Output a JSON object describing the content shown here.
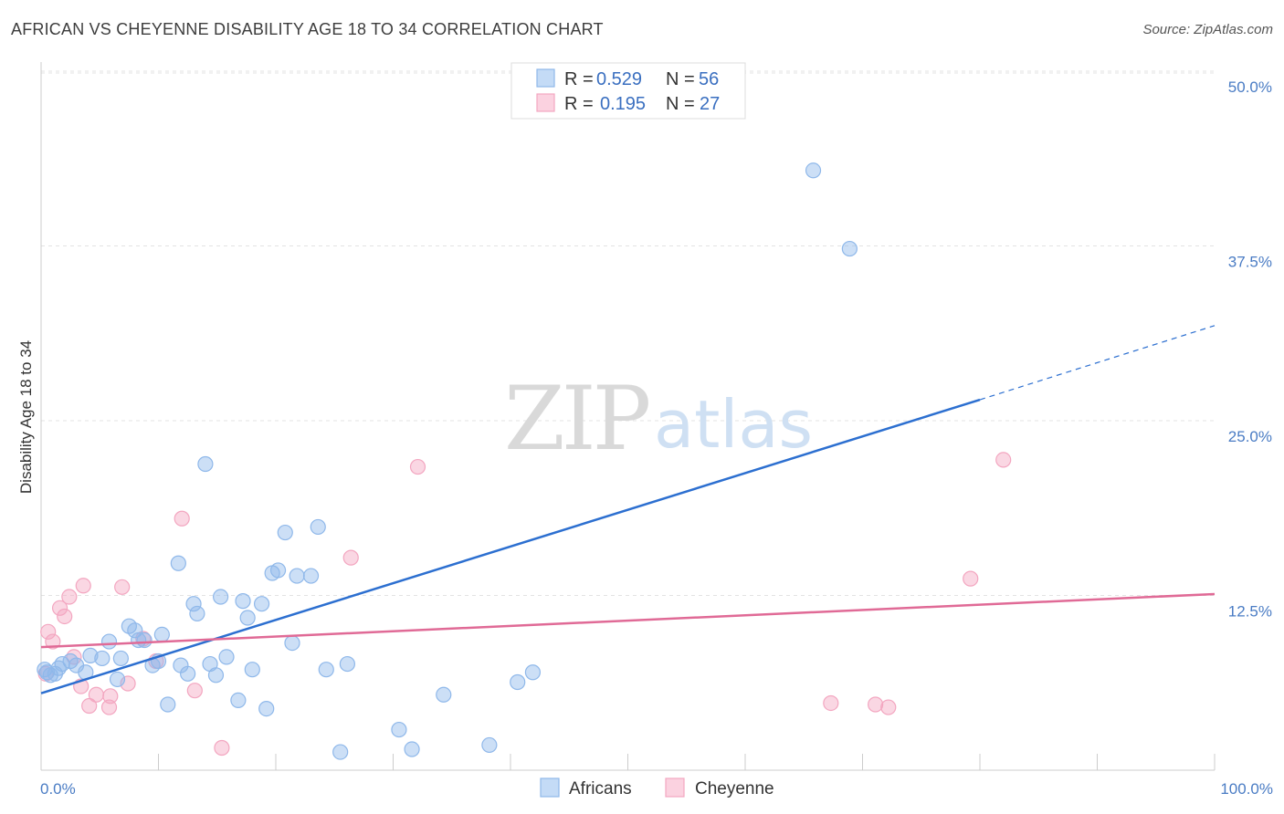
{
  "title": "AFRICAN VS CHEYENNE DISABILITY AGE 18 TO 34 CORRELATION CHART",
  "source": "Source: ZipAtlas.com",
  "colors": {
    "africans": "#8fb8ea",
    "africans_line": "#2c6fd0",
    "cheyenne": "#f3a6c0",
    "cheyenne_line": "#e06a96",
    "tick": "#4a7cc4"
  },
  "watermark": {
    "zip": "ZIP",
    "atlas": "atlas"
  },
  "legend": {
    "rows": [
      {
        "r_label": "R = ",
        "r_value": "0.529",
        "n_label": "N = ",
        "n_value": "56"
      },
      {
        "r_label": "R = ",
        "r_value": "0.195",
        "n_label": "N = ",
        "n_value": "27"
      }
    ]
  },
  "chart_data": {
    "type": "scatter",
    "title": "AFRICAN VS CHEYENNE DISABILITY AGE 18 TO 34 CORRELATION CHART",
    "xlabel": "",
    "ylabel": "Disability Age 18 to 34",
    "xlim": [
      0,
      100
    ],
    "ylim": [
      0,
      50
    ],
    "x_tick_labels": [
      "0.0%",
      "100.0%"
    ],
    "y_ticks": [
      12.5,
      25.0,
      37.5,
      50.0
    ],
    "y_tick_labels": [
      "12.5%",
      "25.0%",
      "37.5%",
      "50.0%"
    ],
    "grid": true,
    "legend_position": "top-center",
    "series": [
      {
        "name": "Africans",
        "r": 0.529,
        "n": 56,
        "trend": {
          "x": [
            0,
            80,
            100
          ],
          "y": [
            5.5,
            26.5,
            31.8
          ],
          "solid_until": 80
        },
        "points": [
          [
            0.3,
            7.2
          ],
          [
            0.8,
            6.8
          ],
          [
            1.2,
            6.9
          ],
          [
            1.8,
            7.6
          ],
          [
            2.5,
            7.8
          ],
          [
            3.0,
            7.5
          ],
          [
            3.8,
            7.0
          ],
          [
            4.2,
            8.2
          ],
          [
            5.2,
            8.0
          ],
          [
            5.8,
            9.2
          ],
          [
            6.5,
            6.5
          ],
          [
            6.8,
            8.0
          ],
          [
            7.5,
            10.3
          ],
          [
            8.0,
            10.0
          ],
          [
            8.3,
            9.3
          ],
          [
            8.8,
            9.3
          ],
          [
            9.5,
            7.5
          ],
          [
            10.0,
            7.8
          ],
          [
            10.3,
            9.7
          ],
          [
            10.8,
            4.7
          ],
          [
            11.7,
            14.8
          ],
          [
            11.9,
            7.5
          ],
          [
            12.5,
            6.9
          ],
          [
            13.0,
            11.9
          ],
          [
            13.3,
            11.2
          ],
          [
            14.0,
            21.9
          ],
          [
            14.4,
            7.6
          ],
          [
            14.9,
            6.8
          ],
          [
            15.3,
            12.4
          ],
          [
            15.8,
            8.1
          ],
          [
            16.8,
            5.0
          ],
          [
            17.2,
            12.1
          ],
          [
            17.6,
            10.9
          ],
          [
            18.0,
            7.2
          ],
          [
            18.8,
            11.9
          ],
          [
            19.2,
            4.4
          ],
          [
            19.7,
            14.1
          ],
          [
            20.2,
            14.3
          ],
          [
            20.8,
            17.0
          ],
          [
            21.4,
            9.1
          ],
          [
            21.8,
            13.9
          ],
          [
            23.0,
            13.9
          ],
          [
            23.6,
            17.4
          ],
          [
            24.3,
            7.2
          ],
          [
            25.5,
            1.3
          ],
          [
            26.1,
            7.6
          ],
          [
            30.5,
            2.9
          ],
          [
            31.6,
            1.5
          ],
          [
            34.3,
            5.4
          ],
          [
            38.2,
            1.8
          ],
          [
            40.6,
            6.3
          ],
          [
            41.9,
            7.0
          ],
          [
            65.8,
            42.9
          ],
          [
            68.9,
            37.3
          ],
          [
            0.5,
            7.0
          ],
          [
            1.5,
            7.3
          ]
        ]
      },
      {
        "name": "Cheyenne",
        "r": 0.195,
        "n": 27,
        "trend": {
          "x": [
            0,
            100
          ],
          "y": [
            8.8,
            12.6
          ]
        },
        "points": [
          [
            0.4,
            6.9
          ],
          [
            0.6,
            9.9
          ],
          [
            1.0,
            9.2
          ],
          [
            1.6,
            11.6
          ],
          [
            2.0,
            11.0
          ],
          [
            2.4,
            12.4
          ],
          [
            2.8,
            8.1
          ],
          [
            3.4,
            6.0
          ],
          [
            3.6,
            13.2
          ],
          [
            4.1,
            4.6
          ],
          [
            4.7,
            5.4
          ],
          [
            5.8,
            4.5
          ],
          [
            5.9,
            5.3
          ],
          [
            6.9,
            13.1
          ],
          [
            7.4,
            6.2
          ],
          [
            8.7,
            9.4
          ],
          [
            9.8,
            7.8
          ],
          [
            12.0,
            18.0
          ],
          [
            13.1,
            5.7
          ],
          [
            15.4,
            1.6
          ],
          [
            26.4,
            15.2
          ],
          [
            32.1,
            21.7
          ],
          [
            79.2,
            13.7
          ],
          [
            82.0,
            22.2
          ],
          [
            67.3,
            4.8
          ],
          [
            71.1,
            4.7
          ],
          [
            72.2,
            4.5
          ]
        ]
      }
    ]
  },
  "bottom_legend": {
    "africans": "Africans",
    "cheyenne": "Cheyenne"
  }
}
